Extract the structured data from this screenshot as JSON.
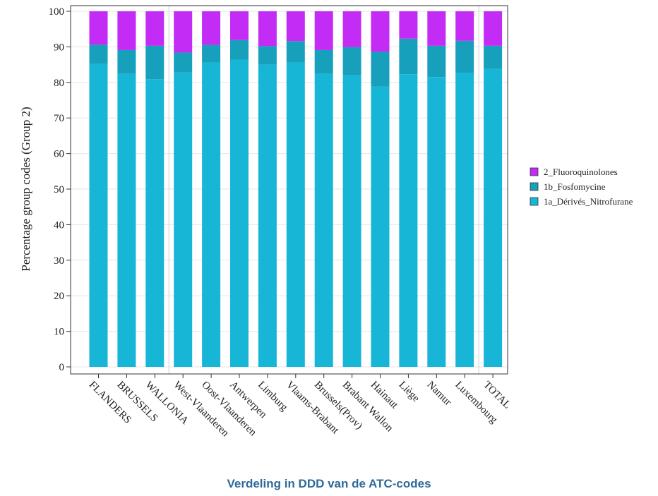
{
  "caption": "Verdeling in DDD van de ATC-codes",
  "chart_data": {
    "type": "bar",
    "stacked": true,
    "ylabel": "Percentage  group codes (Group 2)",
    "xlabel": "",
    "ylim": [
      0,
      100
    ],
    "yticks": [
      0,
      10,
      20,
      30,
      40,
      50,
      60,
      70,
      80,
      90,
      100
    ],
    "grid": true,
    "legend_position": "right",
    "categories": [
      "FLANDERS",
      "BRUSSELS",
      "WALLONIA",
      "West-Vlaanderen",
      "Oost-Vlaanderen",
      "Antwerpen",
      "Limburg",
      "Vlaams-Brabant",
      "Brussels(Prov)",
      "Brabant Wallon",
      "Hainaut",
      "Liège",
      "Namur",
      "Luxembourg",
      "TOTAL"
    ],
    "separators_after": [
      2,
      13
    ],
    "series": [
      {
        "name": "1a_Dérivés_Nitrofurane",
        "color": "#17b6d6",
        "values": [
          85.2,
          82.4,
          80.9,
          82.8,
          85.6,
          86.4,
          85.0,
          85.6,
          82.4,
          82.0,
          78.8,
          82.3,
          81.5,
          82.6,
          83.8
        ]
      },
      {
        "name": "1b_Fosfomycine",
        "color": "#16a0bc",
        "values": [
          5.4,
          6.7,
          9.4,
          5.6,
          4.9,
          5.5,
          5.2,
          6.0,
          6.7,
          7.9,
          9.8,
          10.0,
          8.8,
          9.1,
          6.5
        ]
      },
      {
        "name": "2_Fluoroquinolones",
        "color": "#c22cf5",
        "values": [
          9.4,
          10.9,
          9.7,
          11.6,
          9.5,
          8.1,
          9.8,
          8.4,
          10.9,
          10.1,
          11.4,
          7.7,
          9.7,
          8.3,
          9.7
        ]
      }
    ]
  }
}
